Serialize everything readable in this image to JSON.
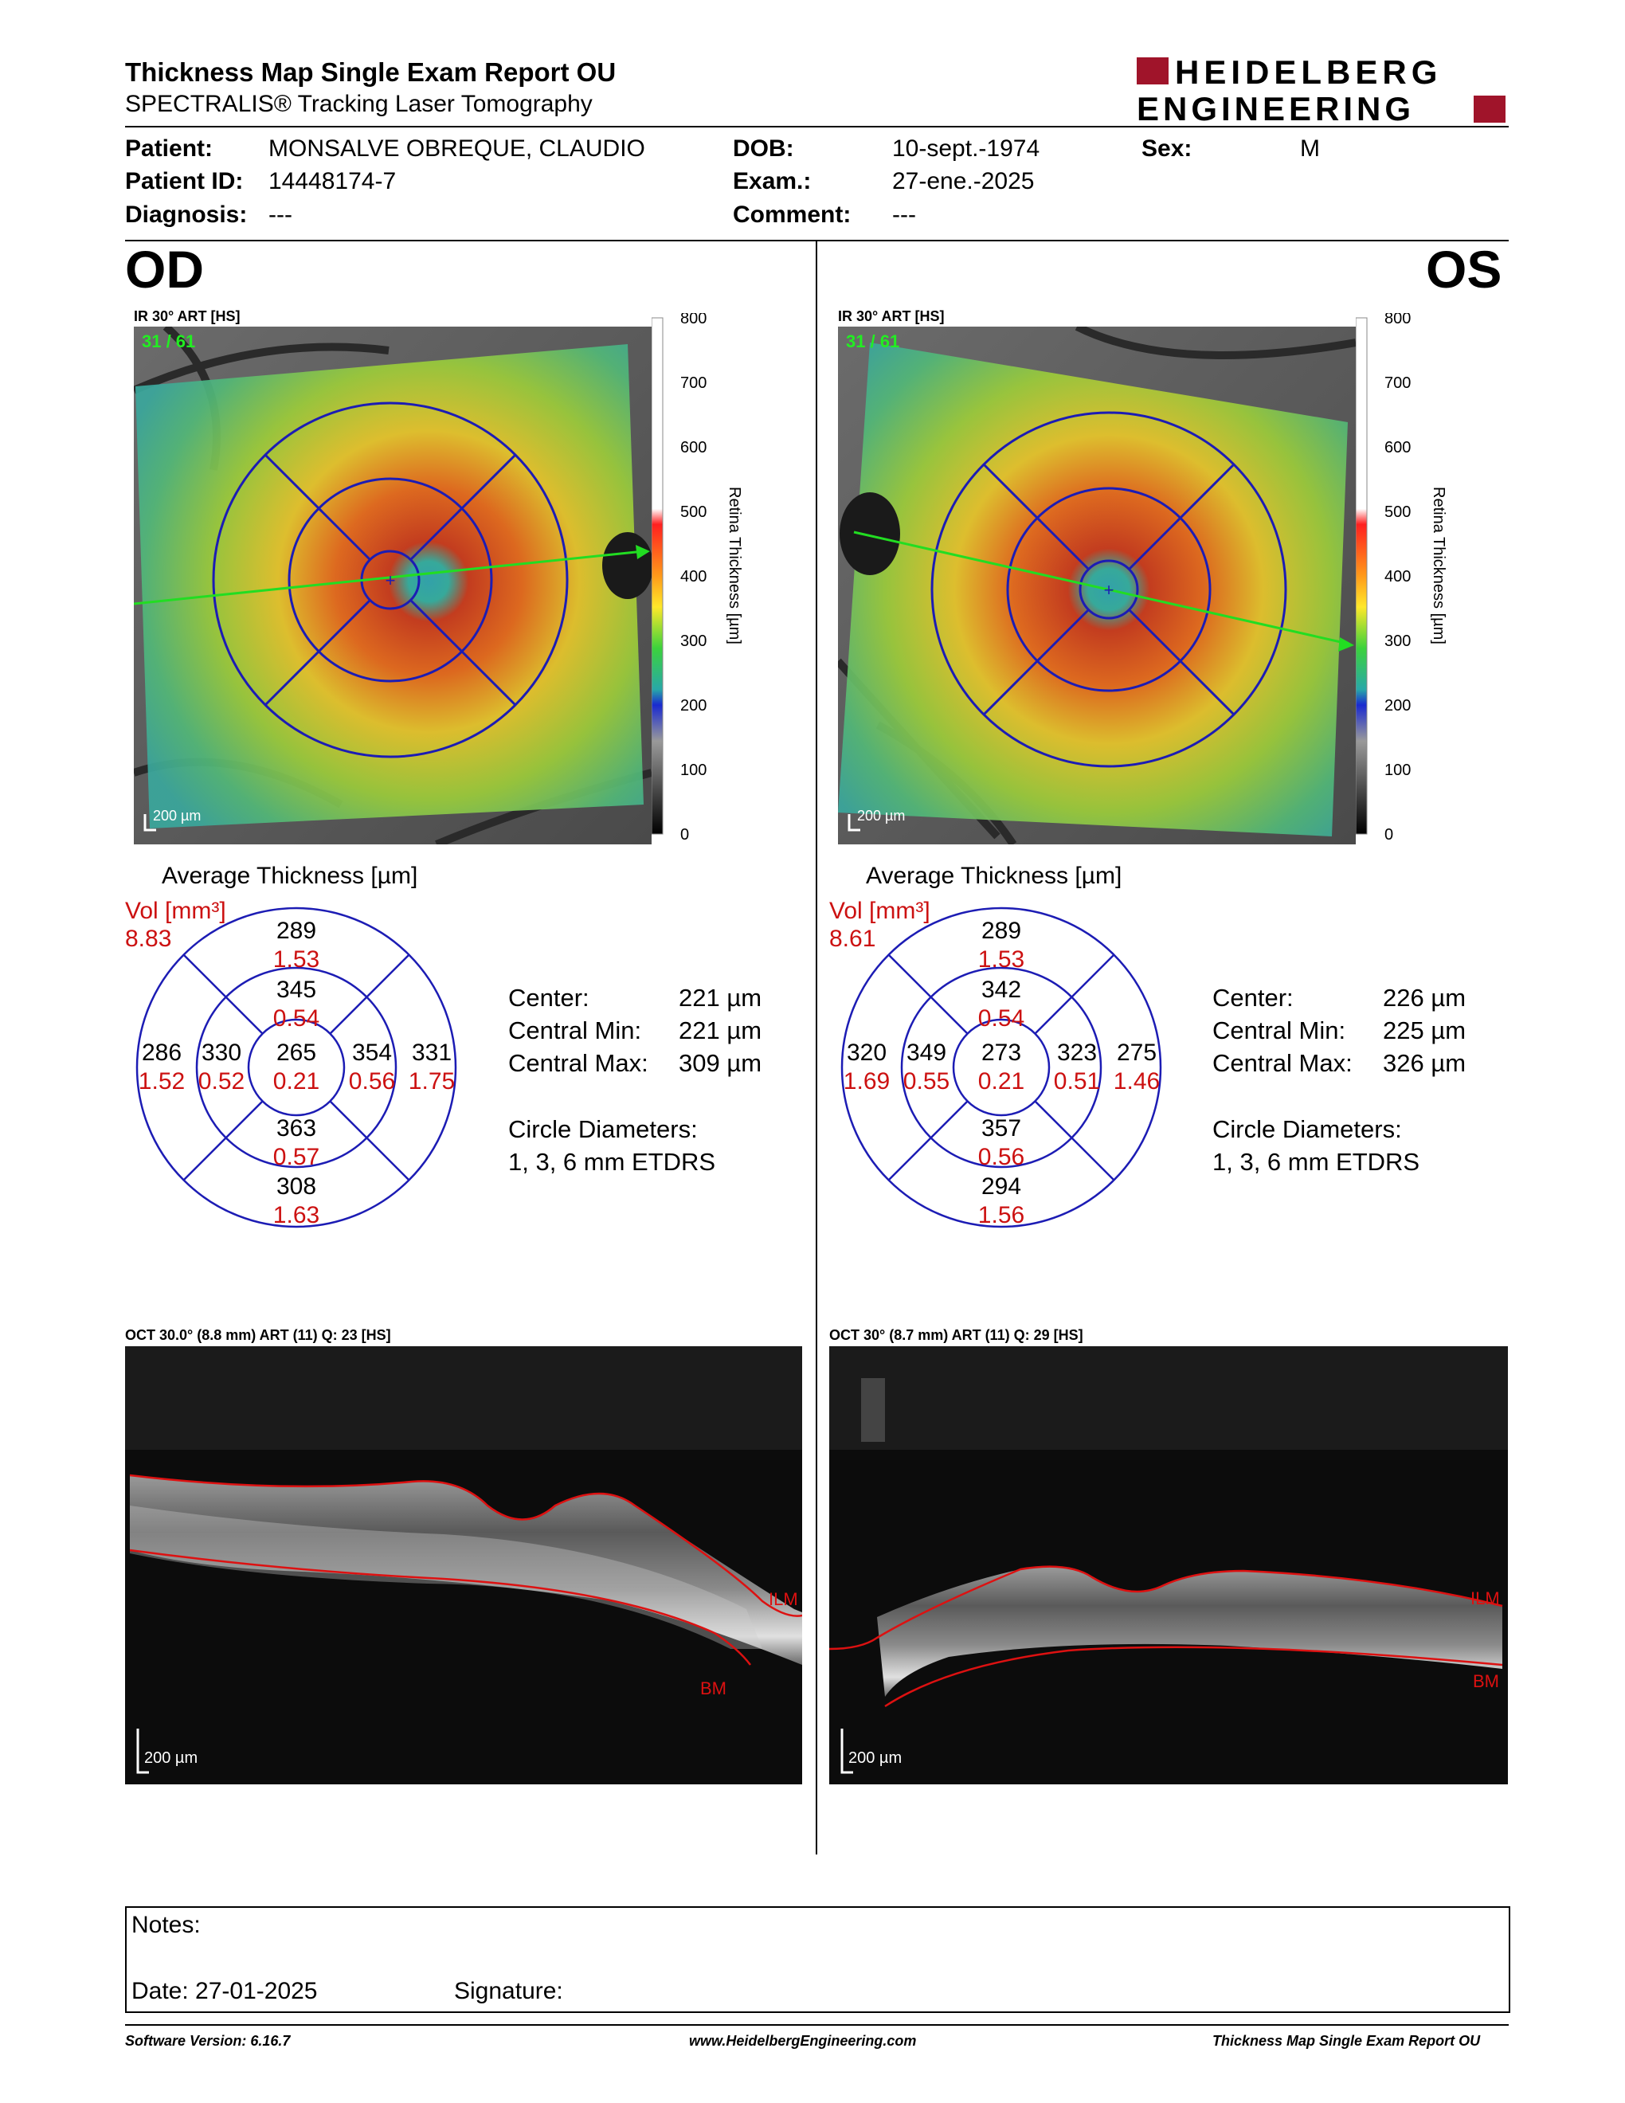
{
  "header": {
    "title": "Thickness Map Single Exam Report OU",
    "subtitle": "SPECTRALIS® Tracking Laser Tomography",
    "logo_line1": "HEIDELBERG",
    "logo_line2": "ENGINEERING"
  },
  "patient": {
    "patient_label": "Patient:",
    "patient_value": "MONSALVE OBREQUE, CLAUDIO",
    "id_label": "Patient ID:",
    "id_value": "14448174-7",
    "diagnosis_label": "Diagnosis:",
    "diagnosis_value": "---",
    "dob_label": "DOB:",
    "dob_value": "10-sept.-1974",
    "exam_label": "Exam.:",
    "exam_value": "27-ene.-2025",
    "comment_label": "Comment:",
    "comment_value": "---",
    "sex_label": "Sex:",
    "sex_value": "M"
  },
  "colors": {
    "ring": "#1c1cb4",
    "volume": "#cc1111",
    "arrow": "#22dd22",
    "layer_line": "#dd1111"
  },
  "scale_ticks": [
    "800",
    "700",
    "600",
    "500",
    "400",
    "300",
    "200",
    "100",
    "0"
  ],
  "scale_title": "Retina Thickness [µm]",
  "od": {
    "eye_label": "OD",
    "ir_label": "IR 30° ART [HS]",
    "frame_label": "31 / 61",
    "scalebar": "200 µm",
    "avg_title": "Average Thickness [µm]",
    "vol_label": "Vol [mm³]",
    "total_vol": "8.83",
    "sectors": {
      "outer_sup": {
        "t": "289",
        "v": "1.53"
      },
      "inner_sup": {
        "t": "345",
        "v": "0.54"
      },
      "center": {
        "t": "265",
        "v": "0.21"
      },
      "outer_left": {
        "t": "286",
        "v": "1.52"
      },
      "inner_left": {
        "t": "330",
        "v": "0.52"
      },
      "inner_right": {
        "t": "354",
        "v": "0.56"
      },
      "outer_right": {
        "t": "331",
        "v": "1.75"
      },
      "inner_inf": {
        "t": "363",
        "v": "0.57"
      },
      "outer_inf": {
        "t": "308",
        "v": "1.63"
      }
    },
    "stats": {
      "center_label": "Center:",
      "center_value": "221 µm",
      "min_label": "Central Min:",
      "min_value": "221 µm",
      "max_label": "Central Max:",
      "max_value": "309 µm",
      "circle_label": "Circle Diameters:",
      "circle_value": "1, 3, 6 mm ETDRS"
    },
    "oct_label": "OCT 30.0° (8.8 mm) ART (11) Q: 23 [HS]",
    "ilm": "ILM",
    "bm": "BM",
    "oct_scalebar": "200 µm"
  },
  "os": {
    "eye_label": "OS",
    "ir_label": "IR 30° ART [HS]",
    "frame_label": "31 / 61",
    "scalebar": "200 µm",
    "avg_title": "Average Thickness [µm]",
    "vol_label": "Vol [mm³]",
    "total_vol": "8.61",
    "sectors": {
      "outer_sup": {
        "t": "289",
        "v": "1.53"
      },
      "inner_sup": {
        "t": "342",
        "v": "0.54"
      },
      "center": {
        "t": "273",
        "v": "0.21"
      },
      "outer_left": {
        "t": "320",
        "v": "1.69"
      },
      "inner_left": {
        "t": "349",
        "v": "0.55"
      },
      "inner_right": {
        "t": "323",
        "v": "0.51"
      },
      "outer_right": {
        "t": "275",
        "v": "1.46"
      },
      "inner_inf": {
        "t": "357",
        "v": "0.56"
      },
      "outer_inf": {
        "t": "294",
        "v": "1.56"
      }
    },
    "stats": {
      "center_label": "Center:",
      "center_value": "226 µm",
      "min_label": "Central Min:",
      "min_value": "225 µm",
      "max_label": "Central Max:",
      "max_value": "326 µm",
      "circle_label": "Circle Diameters:",
      "circle_value": "1, 3, 6 mm ETDRS"
    },
    "oct_label": "OCT 30° (8.7 mm) ART (11) Q: 29 [HS]",
    "ilm": "ILM",
    "bm": "BM",
    "oct_scalebar": "200 µm"
  },
  "notes": {
    "notes_label": "Notes:",
    "date_label": "Date: 27-01-2025",
    "signature_label": "Signature:"
  },
  "footer": {
    "software": "Software Version: 6.16.7",
    "website": "www.HeidelbergEngineering.com",
    "report": "Thickness Map Single Exam Report OU"
  }
}
